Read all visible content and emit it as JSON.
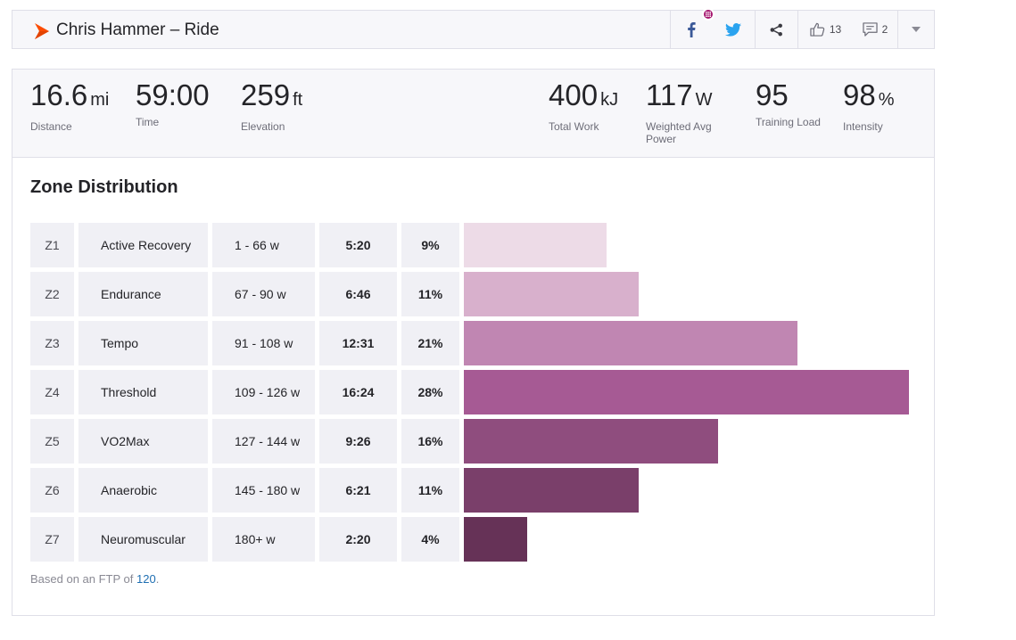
{
  "header": {
    "title": "Chris Hammer – Ride",
    "kudos_count": "13",
    "comments_count": "2"
  },
  "stats": [
    {
      "value": "16.6",
      "unit": "mi",
      "label": "Distance"
    },
    {
      "value": "59:00",
      "unit": "",
      "label": "Time"
    },
    {
      "value": "259",
      "unit": "ft",
      "label": "Elevation"
    },
    {
      "value": "400",
      "unit": "kJ",
      "label": "Total Work"
    },
    {
      "value": "117",
      "unit": "W",
      "label": "Weighted Avg Power"
    },
    {
      "value": "95",
      "unit": "",
      "label": "Training Load"
    },
    {
      "value": "98",
      "unit": "%",
      "label": "Intensity"
    }
  ],
  "zones": {
    "title": "Zone Distribution",
    "rows": [
      {
        "id": "Z1",
        "name": "Active Recovery",
        "range": "1 - 66 w",
        "time": "5:20",
        "pct": "9%",
        "share": 9,
        "color": "#eddbe7"
      },
      {
        "id": "Z2",
        "name": "Endurance",
        "range": "67 - 90 w",
        "time": "6:46",
        "pct": "11%",
        "share": 11,
        "color": "#d8b0cc"
      },
      {
        "id": "Z3",
        "name": "Tempo",
        "range": "91 - 108 w",
        "time": "12:31",
        "pct": "21%",
        "share": 21,
        "color": "#c086b2"
      },
      {
        "id": "Z4",
        "name": "Threshold",
        "range": "109 - 126 w",
        "time": "16:24",
        "pct": "28%",
        "share": 28,
        "color": "#a65a94"
      },
      {
        "id": "Z5",
        "name": "VO2Max",
        "range": "127 - 144 w",
        "time": "9:26",
        "pct": "16%",
        "share": 16,
        "color": "#8f4d7e"
      },
      {
        "id": "Z6",
        "name": "Anaerobic",
        "range": "145 - 180 w",
        "time": "6:21",
        "pct": "11%",
        "share": 11,
        "color": "#7a3f6a"
      },
      {
        "id": "Z7",
        "name": "Neuromuscular",
        "range": "180+ w",
        "time": "2:20",
        "pct": "4%",
        "share": 4,
        "color": "#663257"
      }
    ],
    "footnote_prefix": "Based on an FTP of",
    "ftp_value": "120",
    "footnote_suffix": "."
  }
}
